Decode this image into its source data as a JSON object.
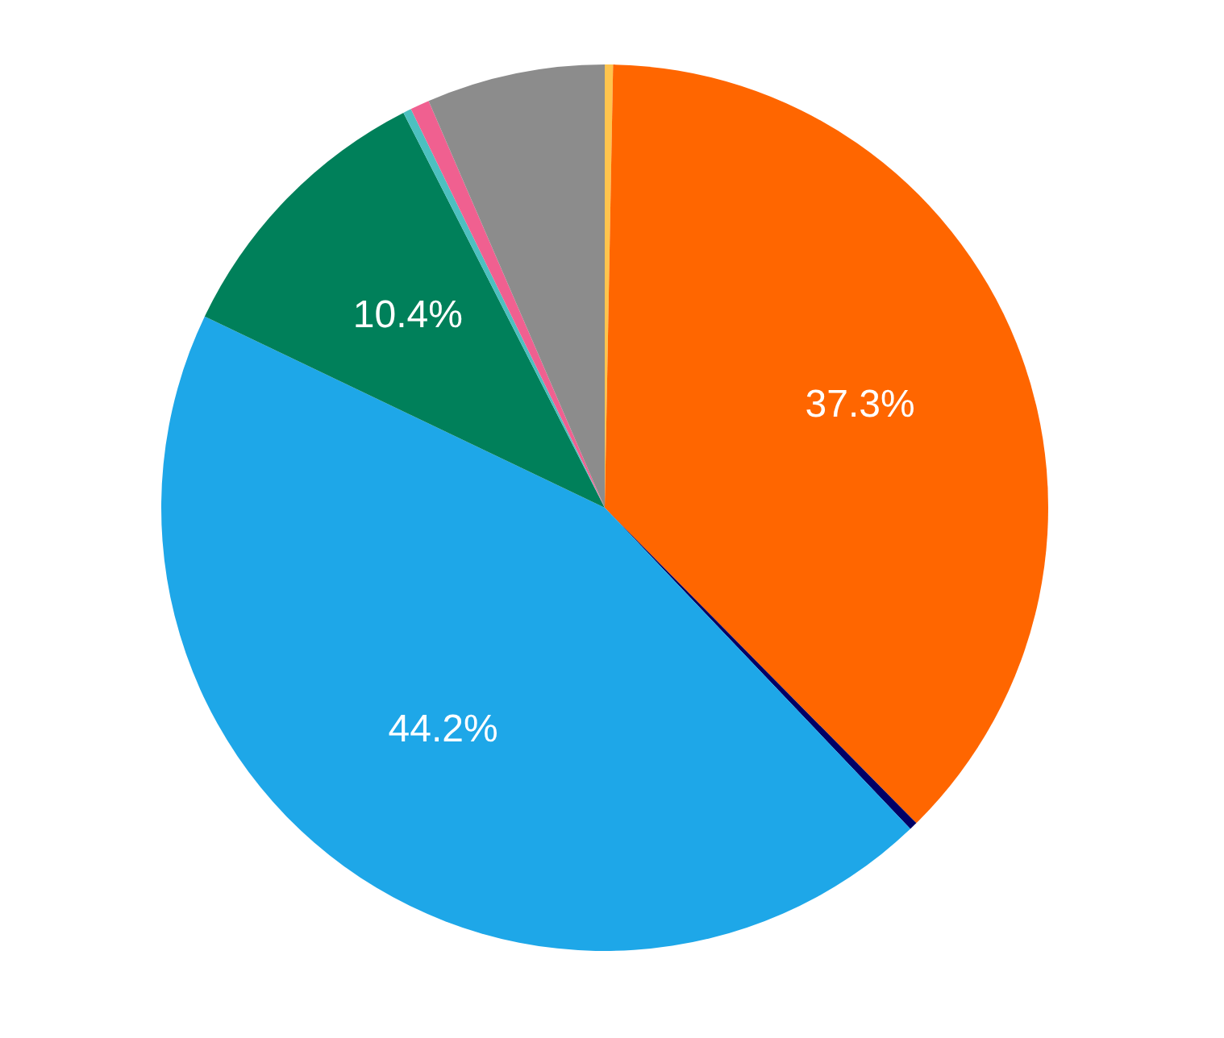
{
  "chart_data": {
    "type": "pie",
    "categories": [
      null,
      null,
      null,
      null,
      null,
      null,
      null,
      null
    ],
    "values": [
      0.3,
      37.3,
      0.3,
      44.2,
      10.4,
      0.3,
      0.7,
      6.5
    ],
    "colors": [
      "#ffc44d",
      "#ff6600",
      "#000066",
      "#1ea7e8",
      "#00805a",
      "#4cc0c0",
      "#f06090",
      "#8c8c8c"
    ],
    "value_labels": [
      null,
      "37.3%",
      null,
      "44.2%",
      "10.4%",
      null,
      null,
      null
    ]
  }
}
